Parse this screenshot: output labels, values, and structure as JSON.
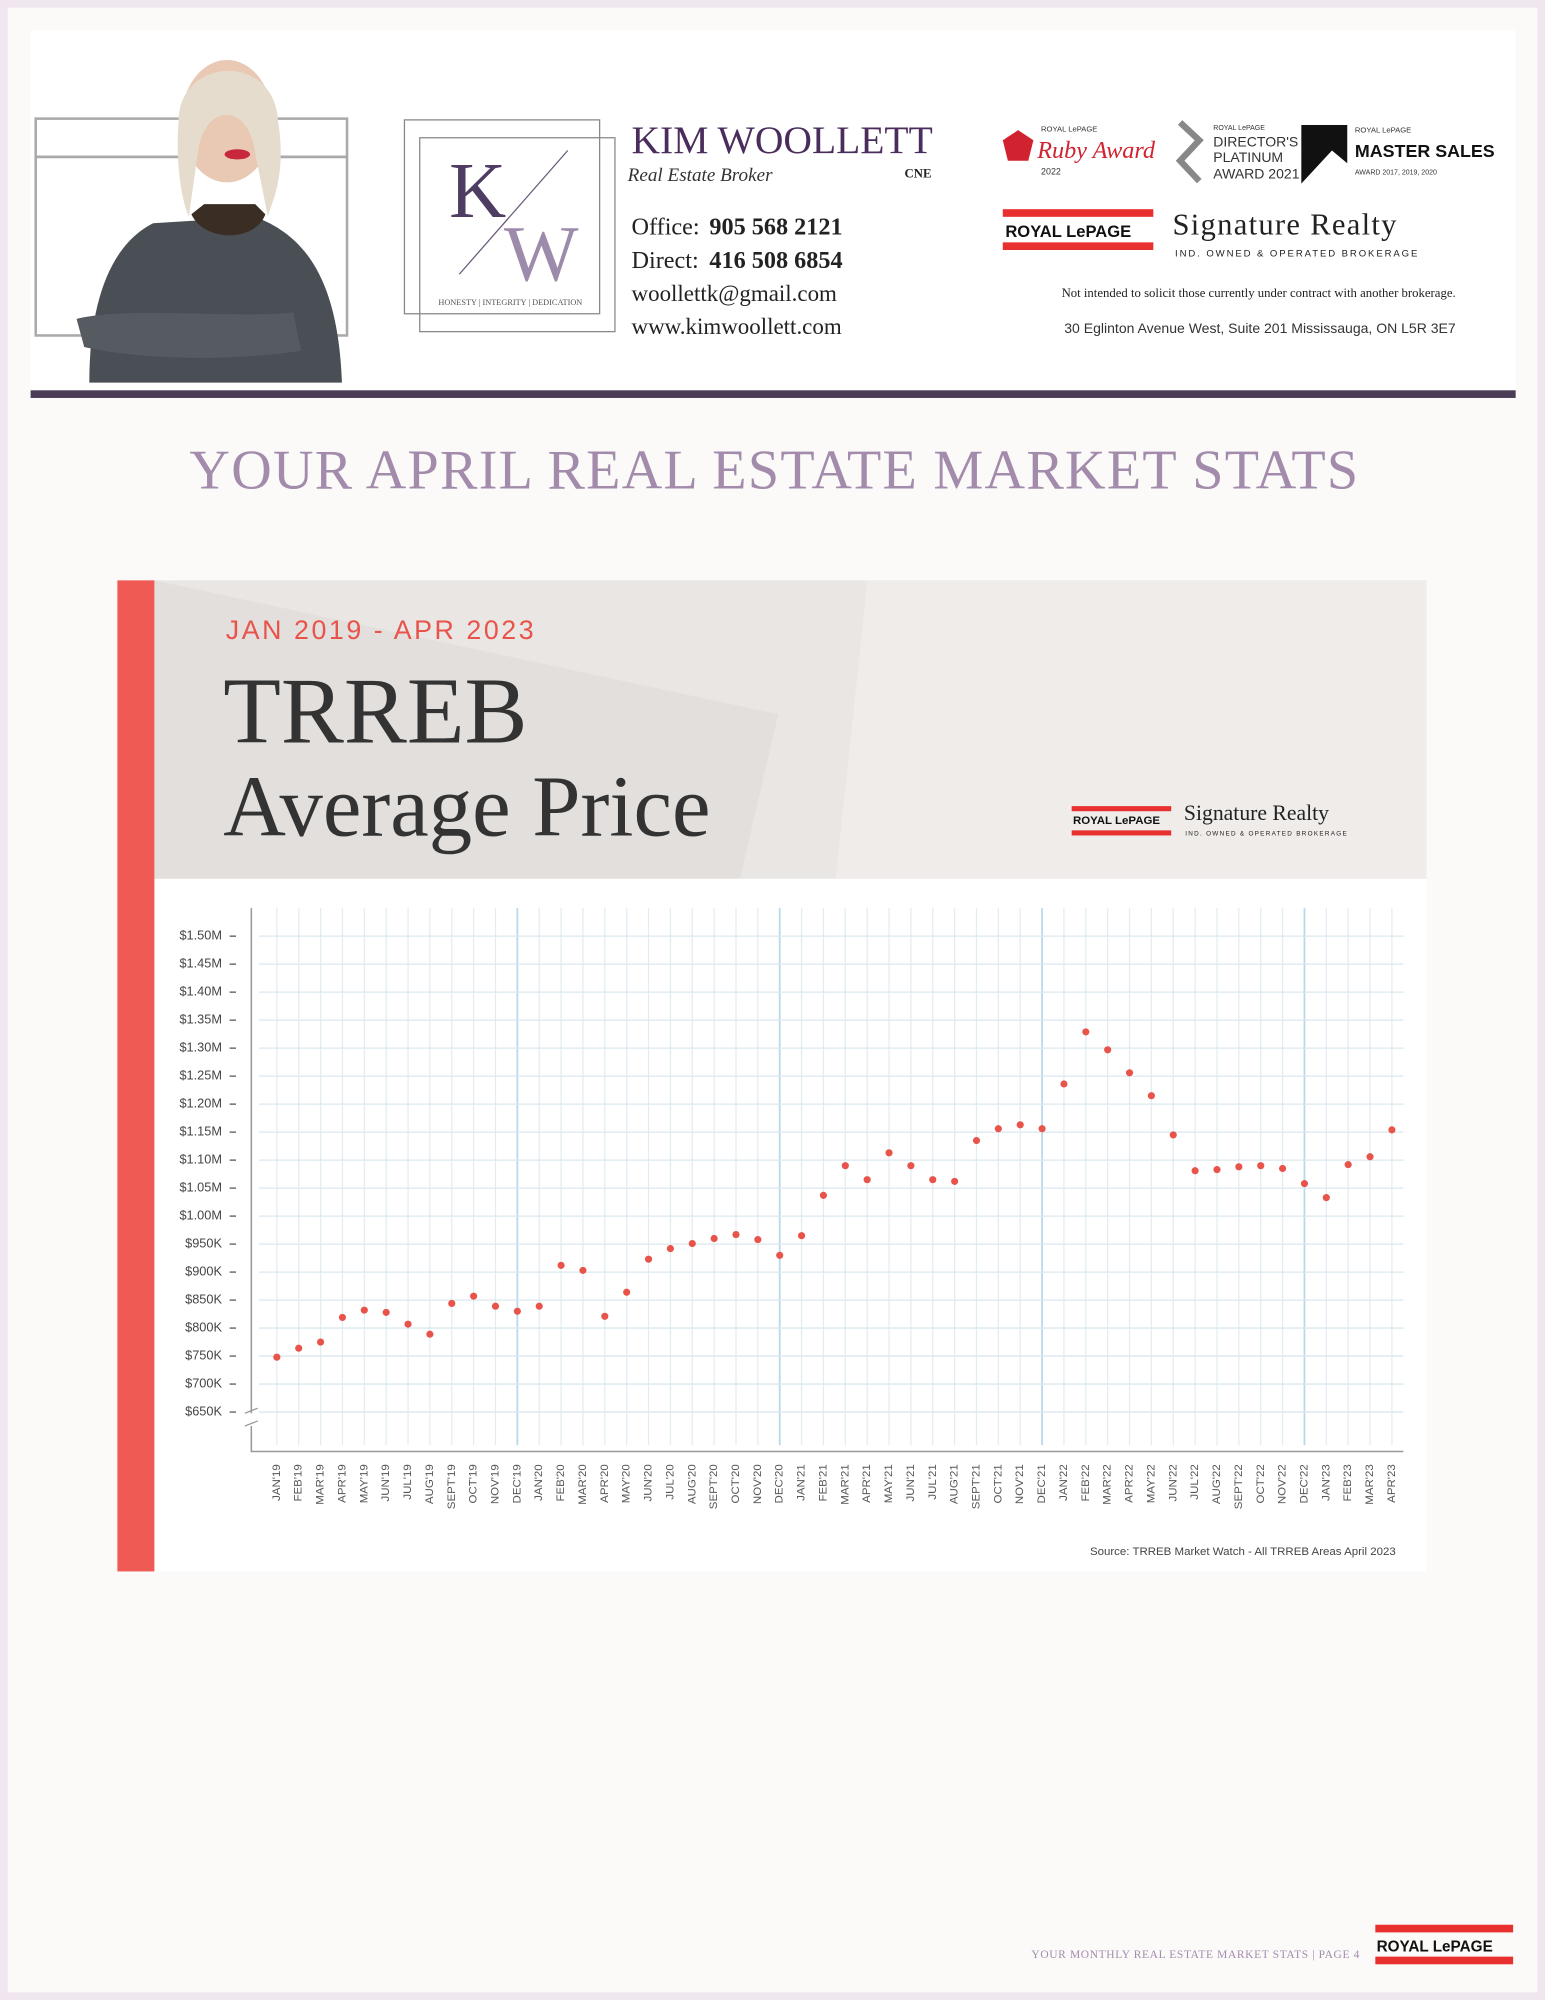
{
  "header": {
    "name": "KIM WOOLLETT",
    "role": "Real Estate Broker",
    "designation": "CNE",
    "monogram": [
      "K",
      "W"
    ],
    "logo_motto": "HONESTY | INTEGRITY | DEDICATION",
    "contacts": [
      {
        "label": "Office:",
        "value": "905 568 2121"
      },
      {
        "label": "Direct:",
        "value": "416 508 6854"
      }
    ],
    "email": "woollettk@gmail.com",
    "website": "www.kimwoollett.com",
    "awards": [
      {
        "lines": [
          "ROYAL LePAGE",
          "Ruby Award",
          "2022"
        ]
      },
      {
        "lines": [
          "ROYAL LePAGE",
          "DIRECTOR'S",
          "PLATINUM",
          "AWARD 2021"
        ]
      },
      {
        "lines": [
          "ROYAL LePAGE",
          "MASTER SALES",
          "AWARD 2017, 2019, 2020"
        ]
      }
    ],
    "brokerage": {
      "brand": "ROYAL LePAGE",
      "name": "Signature Realty",
      "tagline": "IND. OWNED & OPERATED BROKERAGE"
    },
    "disclaimer": "Not intended to solicit those currently under contract with another brokerage.",
    "address": "30 Eglinton Avenue West, Suite 201 Mississauga, ON  L5R 3E7"
  },
  "page_title": "YOUR APRIL REAL ESTATE MARKET STATS",
  "chart_data": {
    "type": "dot",
    "subtitle": "JAN 2019 - APR 2023",
    "title": [
      "TRREB",
      "Average Price"
    ],
    "source": "Source: TRREB Market Watch - All TRREB Areas April 2023",
    "color": "#e8534a",
    "grid": true,
    "categories": [
      "JAN'19",
      "FEB'19",
      "MAR'19",
      "APR'19",
      "MAY'19",
      "JUN'19",
      "JUL'19",
      "AUG'19",
      "SEPT'19",
      "OCT'19",
      "NOV'19",
      "DEC'19",
      "JAN'20",
      "FEB'20",
      "MAR'20",
      "APR'20",
      "MAY'20",
      "JUN'20",
      "JUL'20",
      "AUG'20",
      "SEPT'20",
      "OCT'20",
      "NOV'20",
      "DEC'20",
      "JAN'21",
      "FEB'21",
      "MAR'21",
      "APR'21",
      "MAY'21",
      "JUN'21",
      "JUL'21",
      "AUG'21",
      "SEPT'21",
      "OCT'21",
      "NOV'21",
      "DEC'21",
      "JAN'22",
      "FEB'22",
      "MAR'22",
      "APR'22",
      "MAY'22",
      "JUN'22",
      "JUL'22",
      "AUG'22",
      "SEPT'22",
      "OCT'22",
      "NOV'22",
      "DEC'22",
      "JAN'23",
      "FEB'23",
      "MAR'23",
      "APR'23"
    ],
    "values": [
      748000,
      764000,
      775000,
      819000,
      832000,
      828000,
      807000,
      789000,
      844000,
      857000,
      839000,
      830000,
      839000,
      912000,
      903000,
      821000,
      864000,
      923000,
      942000,
      951000,
      960000,
      967000,
      958000,
      930000,
      965000,
      1037000,
      1090000,
      1065000,
      1113000,
      1090000,
      1065000,
      1062000,
      1135000,
      1156000,
      1163000,
      1156000,
      1236000,
      1329000,
      1297000,
      1256000,
      1215000,
      1145000,
      1081000,
      1083000,
      1088000,
      1090000,
      1085000,
      1058000,
      1033000,
      1092000,
      1106000,
      1154000
    ],
    "ylim": [
      600000,
      1550000
    ],
    "yticks": [
      {
        "value": 650000,
        "label": "$650K"
      },
      {
        "value": 700000,
        "label": "$700K"
      },
      {
        "value": 750000,
        "label": "$750K"
      },
      {
        "value": 800000,
        "label": "$800K"
      },
      {
        "value": 850000,
        "label": "$850K"
      },
      {
        "value": 900000,
        "label": "$900K"
      },
      {
        "value": 950000,
        "label": "$950K"
      },
      {
        "value": 1000000,
        "label": "$1.00M"
      },
      {
        "value": 1050000,
        "label": "$1.05M"
      },
      {
        "value": 1100000,
        "label": "$1.10M"
      },
      {
        "value": 1150000,
        "label": "$1.15M"
      },
      {
        "value": 1200000,
        "label": "$1.20M"
      },
      {
        "value": 1250000,
        "label": "$1.25M"
      },
      {
        "value": 1300000,
        "label": "$1.30M"
      },
      {
        "value": 1350000,
        "label": "$1.35M"
      },
      {
        "value": 1400000,
        "label": "$1.40M"
      },
      {
        "value": 1450000,
        "label": "$1.45M"
      },
      {
        "value": 1500000,
        "label": "$1.50M"
      }
    ]
  },
  "footer": {
    "text": "YOUR MONTHLY REAL ESTATE MARKET STATS | PAGE 4",
    "brand": "ROYAL LePAGE"
  }
}
